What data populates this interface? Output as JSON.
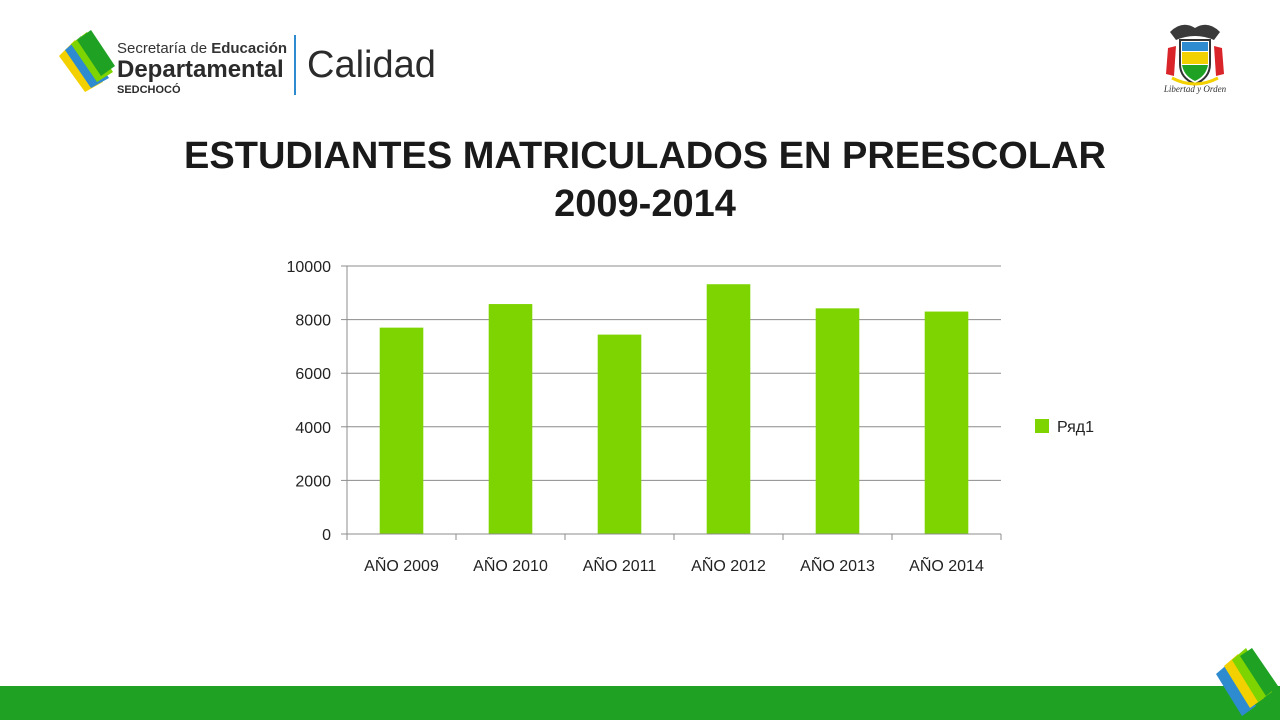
{
  "header": {
    "logo": {
      "line1_prefix": "Secretaría de ",
      "line1_bold": "Educación",
      "line2": "Departamental",
      "line3": "SEDCHOCÓ",
      "brand": "Calidad"
    },
    "coat_caption": "Libertad y Orden"
  },
  "slide": {
    "title_line1": "ESTUDIANTES MATRICULADOS EN PREESCOLAR",
    "title_line2": "2009-2014"
  },
  "colors": {
    "bar": "#7ed400",
    "footer": "#1fa124",
    "gridline": "#8c8c8c",
    "accent_blue": "#2e8bd0",
    "accent_yellow": "#f3d100"
  },
  "chart_data": {
    "type": "bar",
    "categories": [
      "AÑO 2009",
      "AÑO 2010",
      "AÑO 2011",
      "AÑO 2012",
      "AÑO 2013",
      "AÑO 2014"
    ],
    "series": [
      {
        "name": "Ряд1",
        "values": [
          7700,
          8580,
          7440,
          9320,
          8420,
          8300
        ]
      }
    ],
    "ylim": [
      0,
      10000
    ],
    "yticks": [
      0,
      2000,
      4000,
      6000,
      8000,
      10000
    ],
    "grid": true,
    "legend_position": "right"
  }
}
